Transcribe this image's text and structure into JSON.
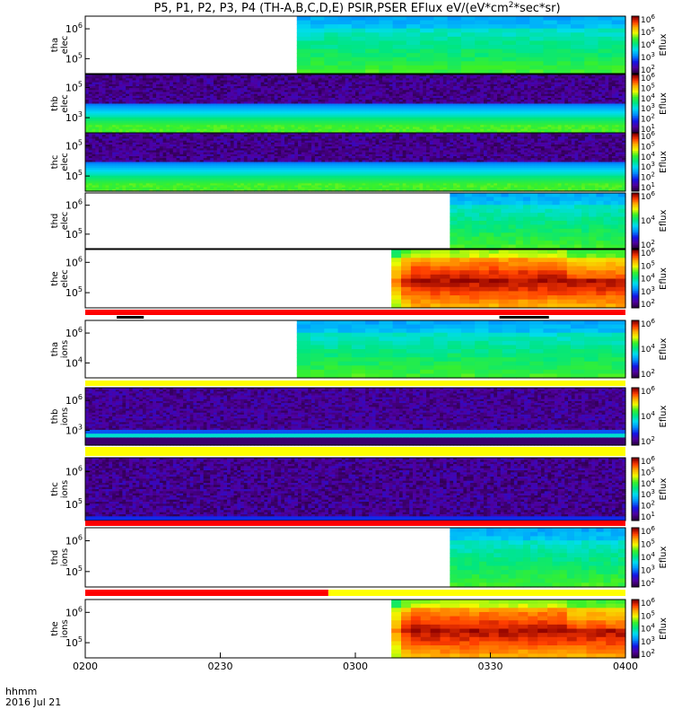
{
  "chart_data": {
    "type": "heatmap",
    "title_html": "P5, P1, P2, P3, P4 (TH-A,B,C,D,E) PSIR,PSER EFlux eV/(eV*cm<tspan baseline-shift=\"super\" font-size=\"9\">2</tspan>*sec*sr)",
    "x_axis": {
      "start": "0200",
      "end": "0400",
      "tick_labels": [
        "0200",
        "0230",
        "0300",
        "0330",
        "0400"
      ],
      "tick_minutes": [
        0,
        30,
        60,
        90,
        120
      ],
      "range_minutes": [
        0,
        120
      ],
      "footer_line1": "hhmm",
      "footer_line2": "2016 Jul 21"
    },
    "colorbar_label": "Eflux",
    "panels": [
      {
        "id": "tha-elec",
        "ylabel1": "tha",
        "ylabel2": "elec",
        "ytick_exp": [
          "5",
          "6"
        ],
        "colorbar_exp": [
          "2",
          "3",
          "4",
          "5",
          "6"
        ],
        "data_start_min": 47,
        "style": "spec-blue"
      },
      {
        "id": "thb-elec",
        "ylabel1": "thb",
        "ylabel2": "elec",
        "ytick_exp": [
          "3",
          "5"
        ],
        "colorbar_exp": [
          "1",
          "2",
          "3",
          "4",
          "5",
          "6"
        ],
        "data_start_min": 0,
        "style": "noise-bottom"
      },
      {
        "id": "thc-elec",
        "ylabel1": "thc",
        "ylabel2": "elec",
        "ytick_exp": [
          "5",
          "5"
        ],
        "colorbar_exp": [
          "1",
          "2",
          "3",
          "4",
          "5",
          "6"
        ],
        "data_start_min": 0,
        "style": "noise-bottom"
      },
      {
        "id": "thd-elec",
        "ylabel1": "thd",
        "ylabel2": "elec",
        "ytick_exp": [
          "5",
          "6"
        ],
        "colorbar_exp": [
          "2",
          "4",
          "6"
        ],
        "data_start_min": 81,
        "style": "spec-blue"
      },
      {
        "id": "the-elec",
        "ylabel1": "the",
        "ylabel2": "elec",
        "ytick_exp": [
          "5",
          "6"
        ],
        "colorbar_exp": [
          "2",
          "3",
          "4",
          "5",
          "6"
        ],
        "data_start_min": 68,
        "style": "spec-hot"
      },
      {
        "id": "tha-ions",
        "ylabel1": "tha",
        "ylabel2": "ions",
        "ytick_exp": [
          "4",
          "6"
        ],
        "colorbar_exp": [
          "2",
          "4",
          "6"
        ],
        "data_start_min": 47,
        "style": "spec-blue"
      },
      {
        "id": "thb-ions",
        "ylabel1": "thb",
        "ylabel2": "ions",
        "ytick_exp": [
          "3",
          "6"
        ],
        "colorbar_exp": [
          "2",
          "4",
          "6"
        ],
        "data_start_min": 0,
        "style": "noise-ions"
      },
      {
        "id": "thc-ions",
        "ylabel1": "thc",
        "ylabel2": "ions",
        "ytick_exp": [
          "5",
          "6"
        ],
        "colorbar_exp": [
          "1",
          "2",
          "3",
          "4",
          "5",
          "6"
        ],
        "data_start_min": 0,
        "style": "noise-top"
      },
      {
        "id": "thd-ions",
        "ylabel1": "thd",
        "ylabel2": "ions",
        "ytick_exp": [
          "5",
          "6"
        ],
        "colorbar_exp": [
          "2",
          "3",
          "4",
          "5",
          "6"
        ],
        "data_start_min": 81,
        "style": "spec-blue"
      },
      {
        "id": "the-ions",
        "ylabel1": "the",
        "ylabel2": "ions",
        "ytick_exp": [
          "5",
          "6"
        ],
        "colorbar_exp": [
          "2",
          "3",
          "4",
          "5",
          "6"
        ],
        "data_start_min": 68,
        "style": "spec-hot"
      }
    ],
    "status_bars": [
      {
        "after_panel": "the-elec",
        "color": "#ff0000",
        "black_marks": [
          [
            7,
            13
          ],
          [
            92,
            103
          ]
        ]
      },
      {
        "after_panel": "tha-ions",
        "color": "#ffff00",
        "black_marks": []
      },
      {
        "after_panel": "thb-ions",
        "color": "#ffff00",
        "black_marks": []
      },
      {
        "after_panel": "thc-ions",
        "color": "#ff0000",
        "black_marks": []
      },
      {
        "after_panel": "thd-ions",
        "segments": [
          {
            "from": 0,
            "to": 54,
            "color": "#ff0000"
          },
          {
            "from": 54,
            "to": 120,
            "color": "#ffff00"
          }
        ]
      }
    ]
  }
}
